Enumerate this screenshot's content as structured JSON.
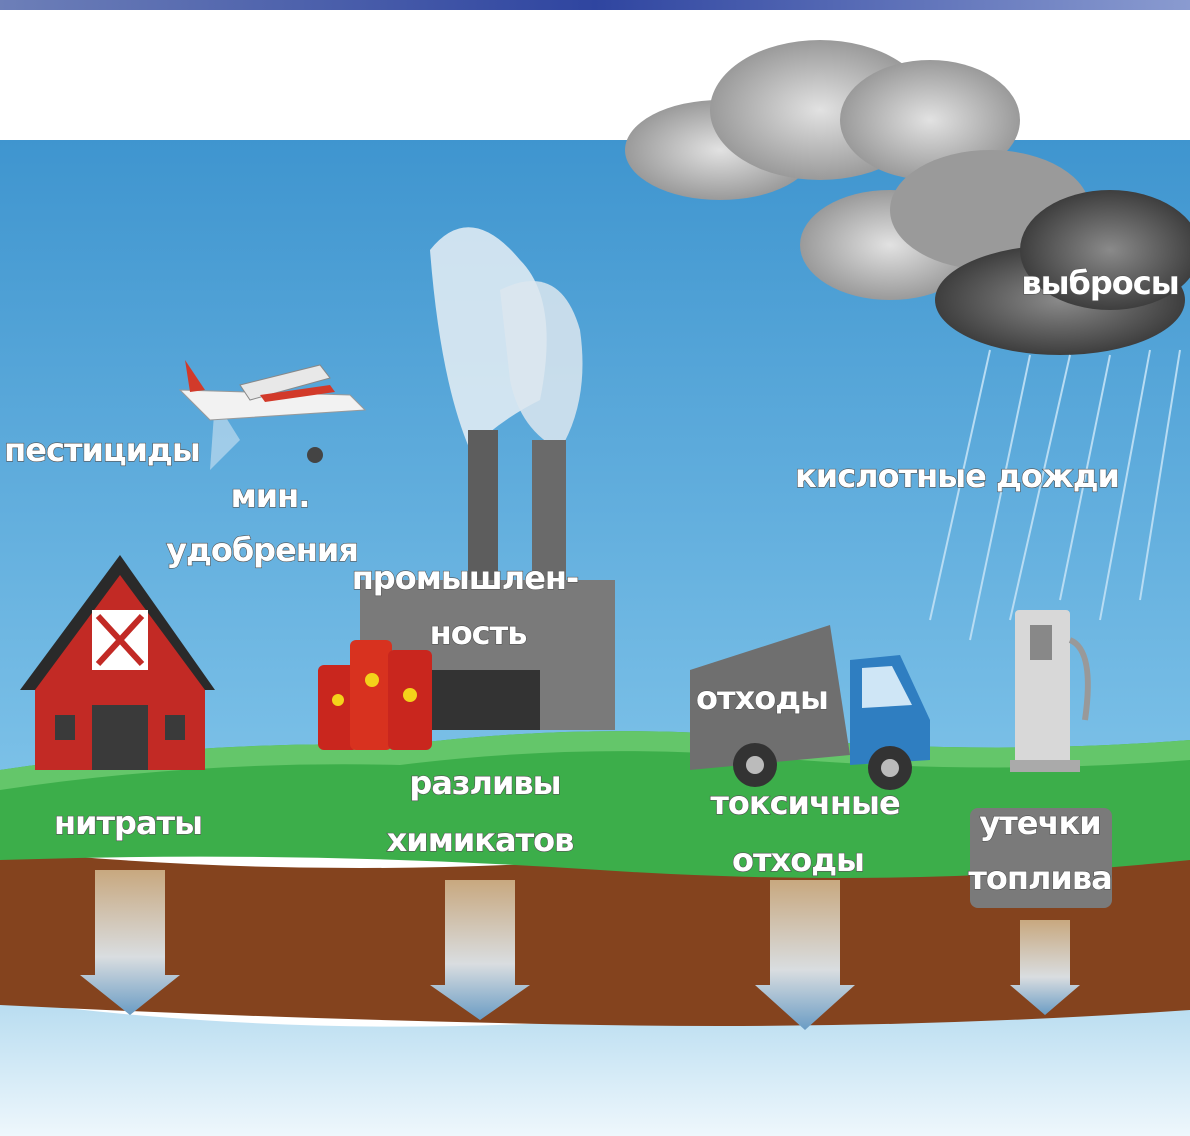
{
  "labels": {
    "emissions": [
      "выбросы"
    ],
    "pesticides": [
      "пестициды"
    ],
    "fertilizers": [
      "мин.",
      "удобрения"
    ],
    "industry": [
      "промышлен-",
      "ность"
    ],
    "acid_rain": [
      "кислотные дожди"
    ],
    "waste": [
      "отходы"
    ],
    "nitrates": [
      "нитраты"
    ],
    "chemical_spills": [
      "разливы",
      "химикатов"
    ],
    "toxic_waste": [
      "токсичные",
      "отходы"
    ],
    "fuel_leaks": [
      "утечки",
      "топлива"
    ]
  }
}
